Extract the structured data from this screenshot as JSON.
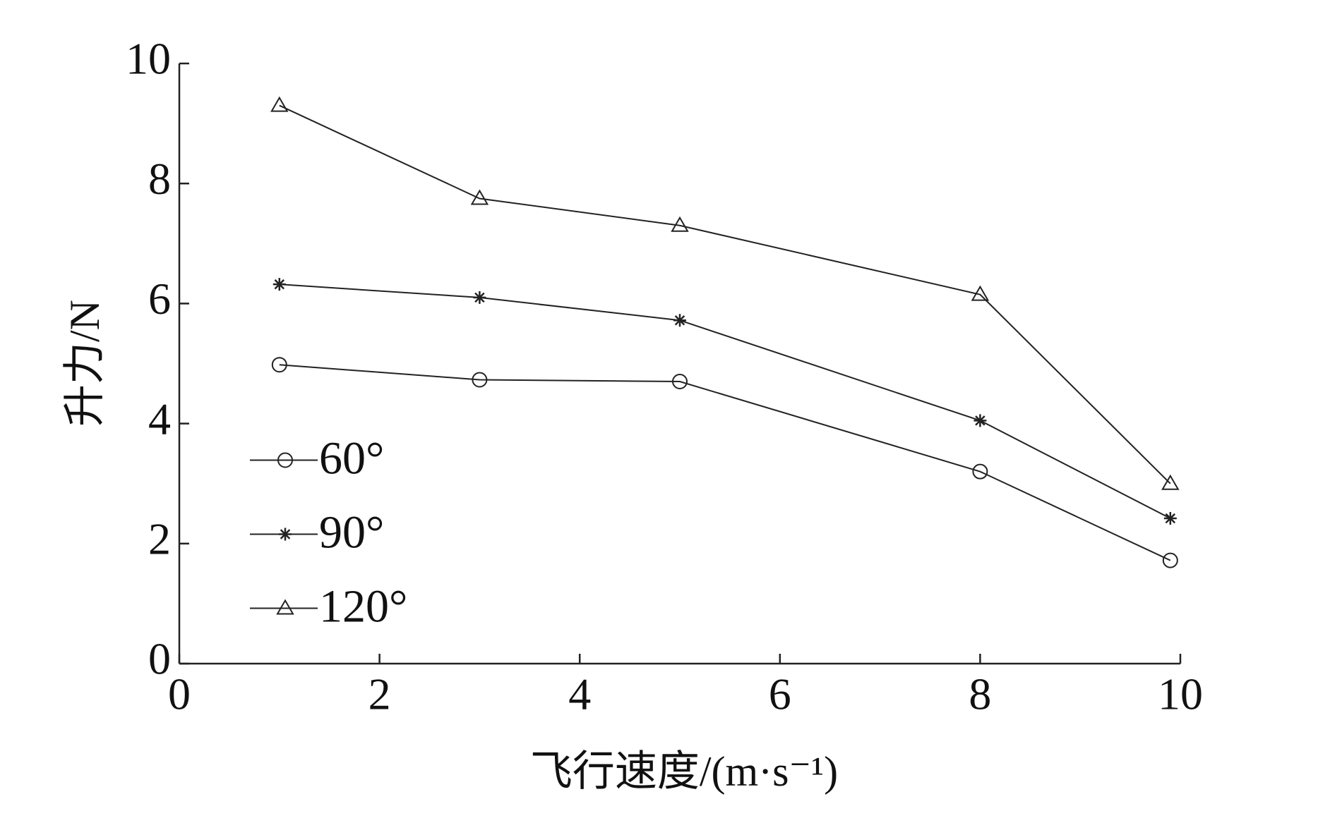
{
  "chart_data": {
    "type": "line",
    "x_label": "飞行速度/(m·s⁻¹)",
    "y_label": "升力/N",
    "x": [
      1,
      3,
      5,
      8,
      9.9
    ],
    "series": [
      {
        "name": "60°",
        "color": "#222222",
        "marker": "circle",
        "values": [
          4.98,
          4.73,
          4.7,
          3.2,
          1.72
        ]
      },
      {
        "name": "90°",
        "color": "#222222",
        "marker": "star",
        "values": [
          6.32,
          6.1,
          5.72,
          4.05,
          2.42
        ]
      },
      {
        "name": "120°",
        "color": "#222222",
        "marker": "triangle",
        "values": [
          9.3,
          7.75,
          7.3,
          6.15,
          3.0
        ]
      }
    ],
    "xlim": [
      0,
      10
    ],
    "xticks": [
      0,
      2,
      4,
      6,
      8,
      10
    ],
    "ylim": [
      0,
      10
    ],
    "yticks": [
      0,
      2,
      4,
      6,
      8,
      10
    ],
    "grid": false,
    "legend": "center left"
  }
}
